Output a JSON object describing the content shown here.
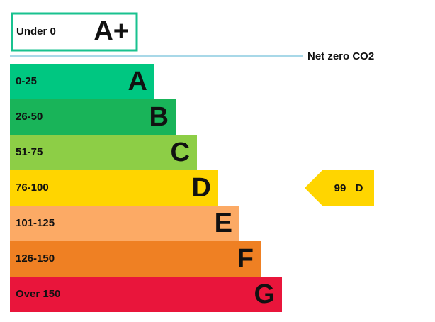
{
  "top_rating": {
    "range": "Under 0",
    "letter": "A+"
  },
  "net_zero": "Net zero CO2",
  "bands": [
    {
      "range": "0-25",
      "letter": "A"
    },
    {
      "range": "26-50",
      "letter": "B"
    },
    {
      "range": "51-75",
      "letter": "C"
    },
    {
      "range": "76-100",
      "letter": "D"
    },
    {
      "range": "101-125",
      "letter": "E"
    },
    {
      "range": "126-150",
      "letter": "F"
    },
    {
      "range": "Over 150",
      "letter": "G"
    }
  ],
  "current": {
    "score": 99,
    "letter": "D"
  }
}
